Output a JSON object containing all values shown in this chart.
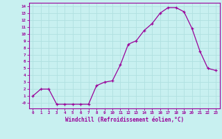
{
  "hours": [
    0,
    1,
    2,
    3,
    4,
    5,
    6,
    7,
    8,
    9,
    10,
    11,
    12,
    13,
    14,
    15,
    16,
    17,
    18,
    19,
    20,
    21,
    22,
    23
  ],
  "values": [
    1,
    2,
    2,
    -0.2,
    -0.2,
    -0.2,
    -0.2,
    -0.2,
    2.5,
    3,
    3.2,
    5.5,
    8.5,
    9,
    10.5,
    11.5,
    13,
    13.8,
    13.8,
    13.2,
    10.8,
    7.5,
    5,
    4.7
  ],
  "line_color": "#990099",
  "marker": "+",
  "bg_color": "#c8f0f0",
  "grid_color": "#aadddd",
  "axis_color": "#990099",
  "tick_color": "#990099",
  "xlabel": "Windchill (Refroidissement éolien,°C)",
  "xlabel_fontsize": 5.5,
  "ytick_labels": [
    "-0",
    "1",
    "2",
    "3",
    "4",
    "5",
    "6",
    "7",
    "8",
    "9",
    "10",
    "11",
    "12",
    "13",
    "14"
  ],
  "ytick_vals": [
    0,
    1,
    2,
    3,
    4,
    5,
    6,
    7,
    8,
    9,
    10,
    11,
    12,
    13,
    14
  ],
  "ylim": [
    -0.8,
    14.5
  ],
  "xlim": [
    -0.5,
    23.5
  ],
  "xtick_labels": [
    "0",
    "1",
    "2",
    "3",
    "4",
    "5",
    "6",
    "7",
    "8",
    "9",
    "10",
    "11",
    "12",
    "13",
    "14",
    "15",
    "16",
    "17",
    "18",
    "19",
    "20",
    "21",
    "22",
    "23"
  ]
}
